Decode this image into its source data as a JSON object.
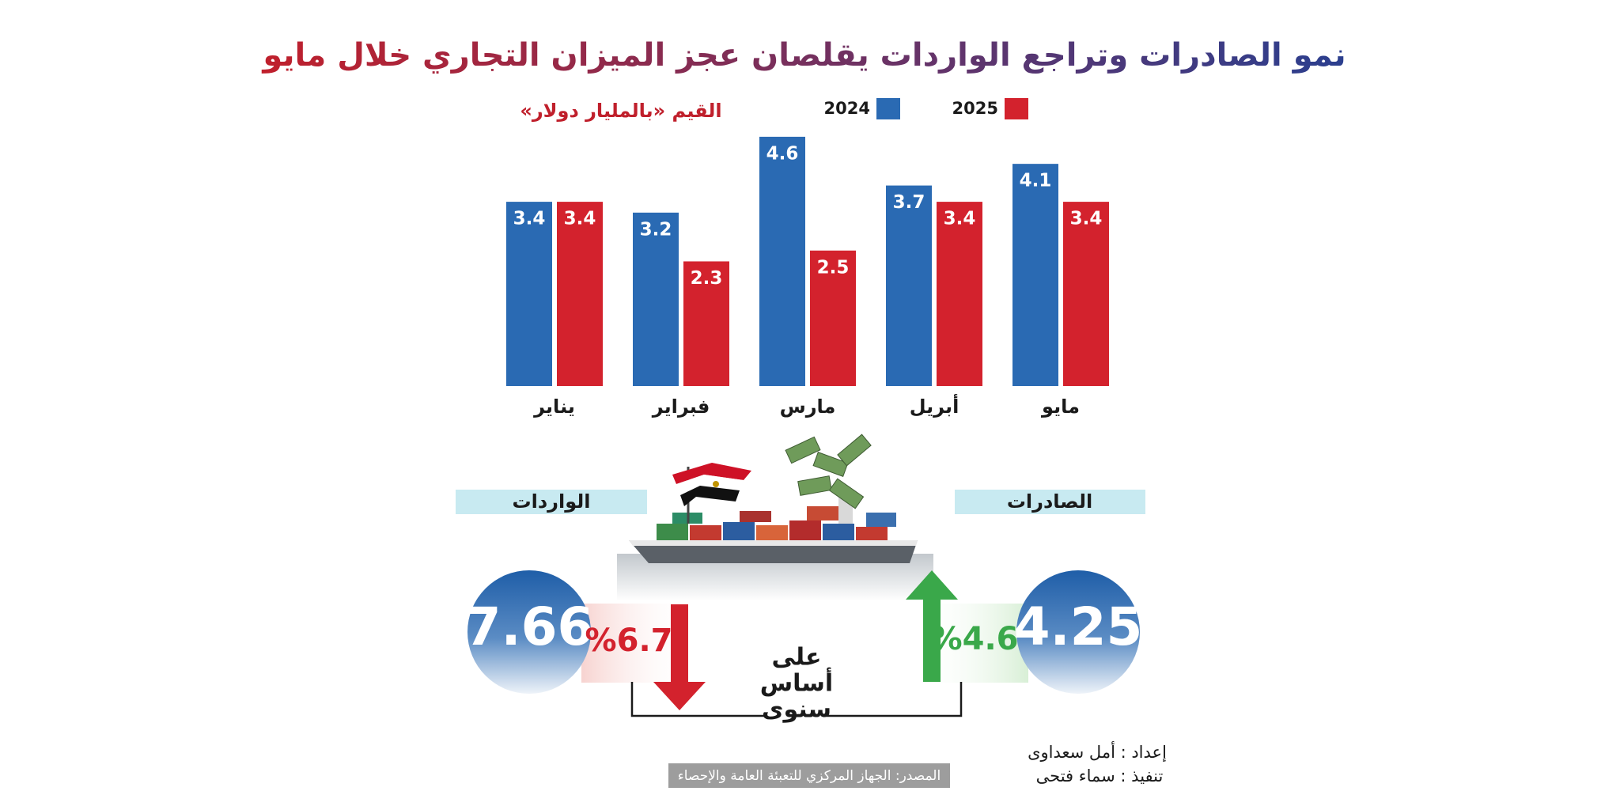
{
  "chart_data": {
    "type": "bar",
    "title": "نمو الصادرات وتراجع الواردات يقلصان عجز الميزان التجاري خلال مايو",
    "subtitle": "القيم «بالمليار دولار»",
    "categories": [
      "يناير",
      "فبراير",
      "مارس",
      "أبريل",
      "مايو"
    ],
    "series": [
      {
        "name": "2024",
        "color": "#2a6ab3",
        "values": [
          3.4,
          3.2,
          4.6,
          3.7,
          4.1
        ]
      },
      {
        "name": "2025",
        "color": "#d3222d",
        "values": [
          3.4,
          2.3,
          2.5,
          3.4,
          3.4
        ]
      }
    ]
  },
  "summary": {
    "basis": [
      "على",
      "أساس",
      "سنوى"
    ],
    "exports": {
      "label": "الصادرات",
      "value": 4.25,
      "change": "%4.6"
    },
    "imports": {
      "label": "الواردات",
      "value": 7.66,
      "change": "%6.7"
    }
  },
  "credits": {
    "prepared": "إعداد : أمل سعداوى",
    "executed": "تنفيذ : سماء فتحى",
    "source": "المصدر: الجهاز المركزي للتعبئة العامة والإحصاء"
  }
}
